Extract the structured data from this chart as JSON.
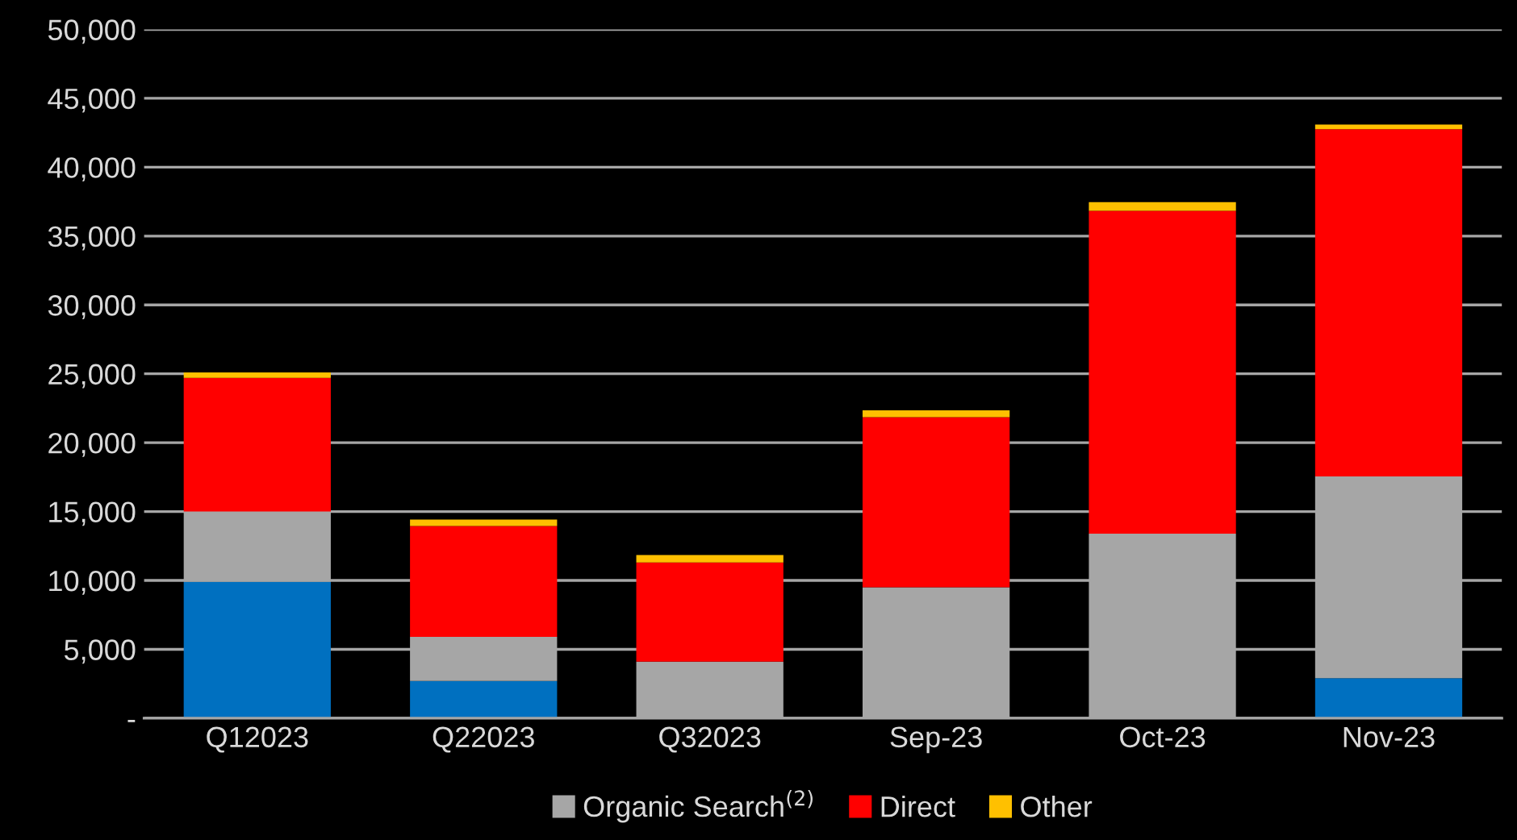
{
  "chart_data": {
    "type": "bar",
    "stacked": true,
    "categories": [
      "Q12023",
      "Q22023",
      "Q32023",
      "Sep-23",
      "Oct-23",
      "Nov-23"
    ],
    "series": [
      {
        "color": "#0070c0",
        "values": [
          9900,
          2700,
          0,
          0,
          0,
          2900
        ]
      },
      {
        "name": "Organic Search$^{(2)}$",
        "color": "#a6a6a6",
        "values": [
          5100,
          3200,
          4100,
          9500,
          13400,
          14650
        ]
      },
      {
        "name": "Direct",
        "color": "#ff0000",
        "values": [
          9700,
          8050,
          7200,
          12350,
          23430,
          25200
        ]
      },
      {
        "name": "Other",
        "color": "#ffc000",
        "values": [
          400,
          470,
          550,
          500,
          630,
          350
        ]
      }
    ],
    "ylim": [
      0,
      50000
    ],
    "yticks": [
      {
        "value": 0,
        "label": "-"
      },
      {
        "value": 5000,
        "label": "5,000"
      },
      {
        "value": 10000,
        "label": "10,000"
      },
      {
        "value": 15000,
        "label": "15,000"
      },
      {
        "value": 20000,
        "label": "20,000"
      },
      {
        "value": 25000,
        "label": "25,000"
      },
      {
        "value": 30000,
        "label": "30,000"
      },
      {
        "value": 35000,
        "label": "35,000"
      },
      {
        "value": 40000,
        "label": "40,000"
      },
      {
        "value": 45000,
        "label": "45,000"
      },
      {
        "value": 50000,
        "label": "50,000"
      }
    ],
    "grid": "y",
    "legend": "bottom"
  }
}
